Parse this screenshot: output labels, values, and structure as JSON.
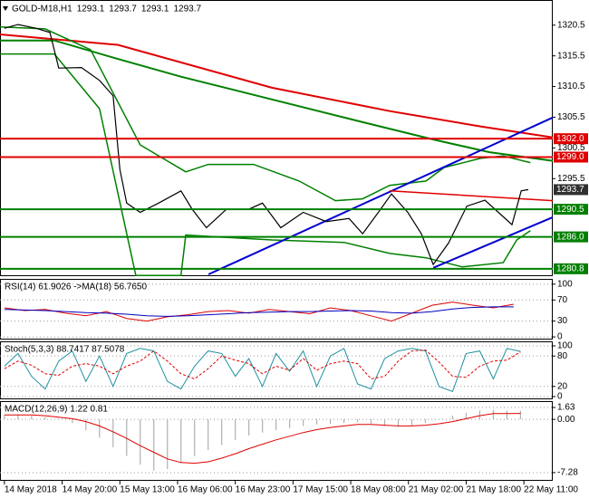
{
  "chart_data": [
    {
      "type": "line",
      "title": "GOLD-M18,H1",
      "ohlc": [
        1293.1,
        1293.7,
        1293.1,
        1293.7
      ],
      "xlim": [
        -1.3,
        161.5
      ],
      "ylim": [
        1279.6,
        1324.6
      ],
      "yticks": [
        1320.5,
        1315.5,
        1310.5,
        1305.5,
        1300.5,
        1295.5
      ],
      "levels": [
        {
          "value": 1302.0,
          "label": "1302.0",
          "color": "#e00000"
        },
        {
          "value": 1299.0,
          "label": "1299.0",
          "color": "#e00000"
        },
        {
          "value": 1290.5,
          "label": "1290.5",
          "color": "#008000"
        },
        {
          "value": 1286.0,
          "label": "1286.0",
          "color": "#008000"
        },
        {
          "value": 1280.8,
          "label": "1280.8",
          "color": "#008000"
        }
      ],
      "last_price": 1293.7,
      "series": [
        {
          "color": "#e00000",
          "width": 2,
          "x": [
            -1.3,
            33.4,
            78.8,
            113.5,
            140.2,
            161.5
          ],
          "values": [
            1319.0,
            1317.3,
            1310.3,
            1306.5,
            1304.0,
            1302.2
          ]
        },
        {
          "color": "#008000",
          "width": 2,
          "x": [
            -1.3,
            14.7,
            33.4,
            52,
            78.8,
            105.5,
            126.8,
            142.9,
            161.5
          ],
          "values": [
            1318.0,
            1318.0,
            1315.0,
            1312.1,
            1308.4,
            1304.7,
            1301.8,
            1299.8,
            1298.4
          ]
        },
        {
          "color": "#008000",
          "width": 1.5,
          "x": [
            -1.3,
            12,
            25.4,
            40,
            53.4,
            60,
            73.4,
            86.8,
            97.5,
            105.5,
            113.5,
            124.2,
            129.5,
            140.2,
            146.9,
            154.9
          ],
          "values": [
            1320.2,
            1319.9,
            1316.5,
            1301.0,
            1296.6,
            1297.8,
            1297.8,
            1295.1,
            1291.9,
            1292.2,
            1294.4,
            1295.1,
            1297.3,
            1298.8,
            1299.2,
            1298.1
          ]
        },
        {
          "color": "#008000",
          "width": 1.5,
          "x": [
            -1.3,
            14.7,
            28,
            38.7,
            52,
            53.4,
            78.8,
            100.1,
            113.5,
            124.2,
            134.9,
            146.9,
            150.9,
            154.9
          ],
          "values": [
            1315.8,
            1315.8,
            1306.9,
            1279.7,
            1279.7,
            1286.3,
            1285.5,
            1285.1,
            1283.3,
            1282.6,
            1281.1,
            1281.8,
            1285.5,
            1287.0
          ]
        },
        {
          "color": "#0000d0",
          "width": 2,
          "x": [
            60.1,
            161.5
          ],
          "values": [
            1279.9,
            1305.45
          ]
        },
        {
          "color": "#0000d0",
          "width": 2,
          "x": [
            126.3,
            161.5
          ],
          "values": [
            1280.95,
            1289.2
          ]
        },
        {
          "color": "#e00000",
          "width": 1.5,
          "x": [
            113.5,
            161.5
          ],
          "values": [
            1293.5,
            1291.9
          ]
        },
        {
          "color": "#000000",
          "width": 1.2,
          "x": [
            0,
            4,
            9.3,
            13.4,
            16,
            22.7,
            28,
            32,
            34,
            36,
            40,
            45.4,
            52,
            55.3,
            59.5,
            65.4,
            72,
            76,
            81.4,
            88,
            94.8,
            101.5,
            105.5,
            110.8,
            114,
            118.8,
            122.8,
            126.3,
            130.8,
            136.2,
            141.5,
            145.5,
            149.5,
            152.2,
            154.3
          ],
          "values": [
            1320.0,
            1320.6,
            1320.0,
            1319.3,
            1313.5,
            1313.6,
            1311.5,
            1309.0,
            1297.0,
            1291.5,
            1290.0,
            1291.5,
            1293.5,
            1290.5,
            1287.5,
            1290.5,
            1290.5,
            1291.5,
            1287.5,
            1290.0,
            1288.5,
            1289.0,
            1286.5,
            1290.5,
            1293.0,
            1290.0,
            1286.5,
            1281.5,
            1285.0,
            1291.0,
            1292.0,
            1290.0,
            1288.0,
            1293.5,
            1293.7
          ]
        }
      ]
    },
    {
      "type": "line",
      "title": "RSI(14) 61.9026 ->MA(18) 56.7650",
      "xlim": [
        -1.3,
        161.5
      ],
      "ylim": [
        -5,
        110
      ],
      "yticks": [
        100,
        70,
        30,
        0
      ],
      "x": [
        0,
        6,
        12,
        18,
        24,
        30,
        36,
        42,
        48,
        54,
        60,
        66,
        72,
        78,
        84,
        90,
        96,
        102,
        108,
        114,
        120,
        126,
        132,
        138,
        144,
        150
      ],
      "series": [
        {
          "color": "#e00000",
          "values": [
            55,
            50,
            52,
            45,
            40,
            48,
            35,
            30,
            38,
            42,
            48,
            50,
            45,
            52,
            48,
            44,
            55,
            50,
            40,
            30,
            45,
            60,
            66,
            60,
            55,
            62
          ]
        },
        {
          "color": "#0000c0",
          "values": [
            52,
            51,
            50,
            48,
            46,
            45,
            43,
            40,
            39,
            40,
            42,
            44,
            46,
            47,
            48,
            48,
            49,
            50,
            49,
            46,
            45,
            48,
            53,
            56,
            57,
            57
          ]
        }
      ]
    },
    {
      "type": "line",
      "title": "Stoch(5,3,3) 88.7417 87.5078",
      "xlim": [
        -1.3,
        161.5
      ],
      "ylim": [
        -5.4,
        108.9
      ],
      "yticks": [
        100,
        80,
        20,
        0
      ],
      "x": [
        0,
        4,
        8,
        12,
        16,
        20,
        24,
        28,
        32,
        36,
        40,
        44,
        48,
        52,
        56,
        60,
        64,
        68,
        72,
        76,
        80,
        84,
        88,
        92,
        96,
        100,
        104,
        108,
        112,
        116,
        120,
        124,
        128,
        132,
        136,
        140,
        144,
        148,
        152
      ],
      "series": [
        {
          "color": "#1e90a0",
          "values": [
            60,
            85,
            40,
            15,
            70,
            90,
            30,
            80,
            20,
            85,
            95,
            90,
            30,
            15,
            60,
            90,
            85,
            40,
            75,
            20,
            85,
            50,
            90,
            20,
            80,
            95,
            25,
            15,
            75,
            90,
            95,
            90,
            20,
            10,
            85,
            90,
            35,
            95,
            89
          ]
        },
        {
          "color": "#e00000",
          "dash": true,
          "values": [
            55,
            70,
            62,
            45,
            42,
            60,
            65,
            60,
            45,
            60,
            70,
            90,
            70,
            45,
            35,
            55,
            80,
            72,
            65,
            45,
            60,
            52,
            75,
            52,
            65,
            70,
            65,
            35,
            40,
            70,
            90,
            92,
            68,
            40,
            38,
            60,
            70,
            72,
            88
          ]
        }
      ]
    },
    {
      "type": "bar",
      "title": "MACD(12,26,9) 1.22 0.81",
      "color": "#b0b0b0",
      "xlim": [
        -1.3,
        161.5
      ],
      "ylim": [
        -8.4,
        2.5
      ],
      "yticks": [
        1.63,
        {
          "value": 0,
          "label": "0.00"
        },
        -7.28
      ],
      "xticks": [
        {
          "value": 0,
          "label": "14 May 2018"
        },
        {
          "value": 17,
          "label": "14 May 20:00"
        },
        {
          "value": 34,
          "label": "15 May 13:00"
        },
        {
          "value": 51,
          "label": "16 May 06:00"
        },
        {
          "value": 68,
          "label": "16 May 23:00"
        },
        {
          "value": 85,
          "label": "17 May 15:00"
        },
        {
          "value": 102,
          "label": "18 May 08:00"
        },
        {
          "value": 119,
          "label": "21 May 02:00"
        },
        {
          "value": 136,
          "label": "21 May 18:00"
        },
        {
          "value": 153,
          "label": "22 May 11:00"
        }
      ],
      "x": [
        0,
        4,
        8,
        12,
        16,
        20,
        24,
        28,
        32,
        36,
        40,
        44,
        48,
        52,
        56,
        60,
        64,
        68,
        72,
        76,
        80,
        84,
        88,
        92,
        96,
        100,
        104,
        108,
        112,
        116,
        120,
        124,
        128,
        132,
        136,
        140,
        144,
        148,
        152
      ],
      "values": [
        0.6,
        0.7,
        0.5,
        0.3,
        0.1,
        -0.5,
        -1.5,
        -2.5,
        -3.8,
        -5.0,
        -6.2,
        -7.0,
        -6.8,
        -6.0,
        -5.0,
        -4.2,
        -3.5,
        -2.8,
        -2.2,
        -1.8,
        -1.5,
        -1.2,
        -0.9,
        -0.7,
        -0.6,
        -0.5,
        -0.4,
        -0.6,
        -0.9,
        -1.0,
        -0.8,
        -0.5,
        0.0,
        0.5,
        0.9,
        1.2,
        1.3,
        1.2,
        1.2
      ],
      "series": [
        {
          "color": "#e00000",
          "values": [
            0.6,
            0.6,
            0.6,
            0.5,
            0.3,
            0.1,
            -0.3,
            -0.9,
            -1.7,
            -2.6,
            -3.6,
            -4.5,
            -5.4,
            -5.9,
            -6.0,
            -5.8,
            -5.3,
            -4.7,
            -4.0,
            -3.4,
            -2.8,
            -2.3,
            -1.8,
            -1.4,
            -1.1,
            -0.9,
            -0.7,
            -0.7,
            -0.8,
            -0.9,
            -0.9,
            -0.8,
            -0.6,
            -0.3,
            0.1,
            0.5,
            0.8,
            0.8,
            0.81
          ]
        }
      ]
    }
  ]
}
